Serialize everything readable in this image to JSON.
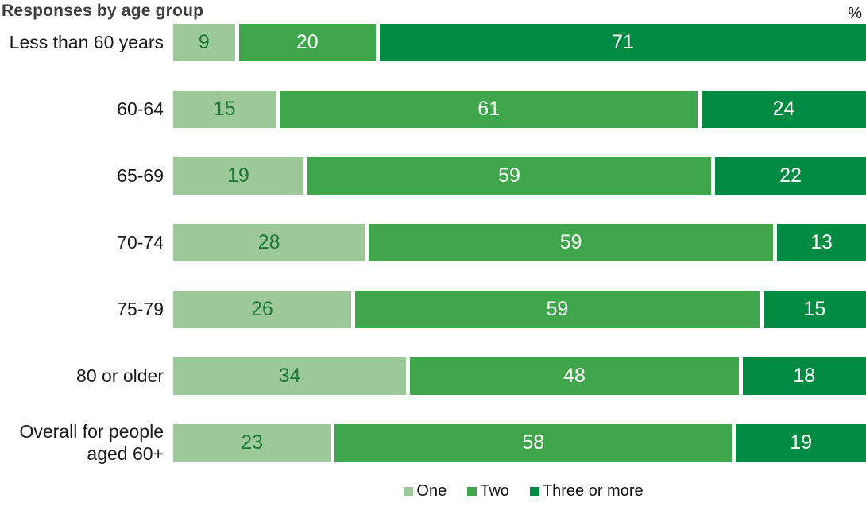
{
  "title": "Responses by age group",
  "unit_label": "%",
  "colors": {
    "series_one": "#9cc89a",
    "series_two": "#3fa64c",
    "series_three_or_more": "#008a42",
    "value_text_on_light": "#1e7b35",
    "value_text_on_dark": "#ffffff",
    "title_text": "#3d3d3d",
    "axis_text": "#1a1a1a"
  },
  "chart_data": {
    "type": "bar",
    "orientation": "horizontal",
    "stacked": true,
    "title": "Responses by age group",
    "xlabel": "%",
    "ylabel": "",
    "xlim": [
      0,
      100
    ],
    "grid": false,
    "legend_position": "bottom",
    "categories": [
      "Less than 60 years",
      "60-64",
      "65-69",
      "70-74",
      "75-79",
      "80 or older",
      "Overall for people aged 60+"
    ],
    "series": [
      {
        "name": "One",
        "color": "#9cc89a",
        "text_color": "#1e7b35",
        "values": [
          9,
          15,
          19,
          28,
          26,
          34,
          23
        ]
      },
      {
        "name": "Two",
        "color": "#3fa64c",
        "text_color": "#ffffff",
        "values": [
          20,
          61,
          59,
          59,
          59,
          48,
          58
        ]
      },
      {
        "name": "Three or more",
        "color": "#008a42",
        "text_color": "#ffffff",
        "values": [
          71,
          24,
          22,
          13,
          15,
          18,
          19
        ]
      }
    ]
  },
  "legend": {
    "items": [
      {
        "label": "One",
        "color": "#9cc89a"
      },
      {
        "label": "Two",
        "color": "#3fa64c"
      },
      {
        "label": "Three or more",
        "color": "#008a42"
      }
    ]
  }
}
